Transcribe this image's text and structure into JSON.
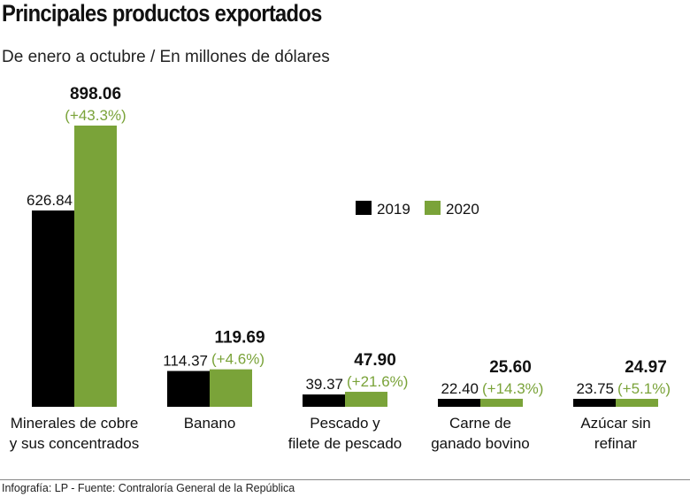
{
  "title": "Principales productos exportados",
  "subtitle": "De enero a octubre / En millones de dólares",
  "source": "Infografía: LP - Fuente: Contraloría General de la República",
  "chart_data": {
    "type": "bar",
    "categories": [
      [
        "Minerales de cobre",
        "y sus concentrados"
      ],
      [
        "Banano"
      ],
      [
        "Pescado y",
        "filete de pescado"
      ],
      [
        "Carne de",
        "ganado bovino"
      ],
      [
        "Azúcar sin",
        "refinar"
      ]
    ],
    "series": [
      {
        "name": "2019",
        "color": "#000000",
        "values": [
          626.84,
          114.37,
          39.37,
          22.4,
          23.75
        ],
        "labels": [
          "626.84",
          "114.37",
          "39.37",
          "22.40",
          "23.75"
        ]
      },
      {
        "name": "2020",
        "color": "#7aa339",
        "values": [
          898.06,
          119.69,
          47.9,
          25.6,
          24.97
        ],
        "labels": [
          "898.06",
          "119.69",
          "47.90",
          "25.60",
          "24.97"
        ],
        "change": [
          "(+43.3%)",
          "(+4.6%)",
          "(+21.6%)",
          "(+14.3%)",
          "(+5.1%)"
        ]
      }
    ],
    "legend": "top-center",
    "grid": false
  }
}
